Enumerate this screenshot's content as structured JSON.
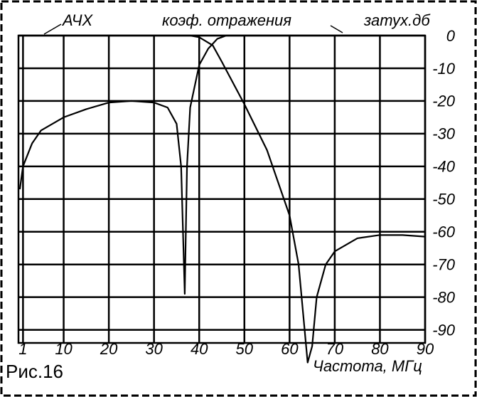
{
  "chart_data": {
    "type": "line",
    "figure_label": "Рис.16",
    "xlabel": "Частота, МГц",
    "ylabel": "затух.дб",
    "xlim": [
      0,
      90
    ],
    "xticks": [
      1,
      10,
      20,
      30,
      40,
      50,
      60,
      70,
      80,
      90
    ],
    "ylim": [
      -94,
      0
    ],
    "yticks": [
      0,
      -10,
      -20,
      -30,
      -40,
      -50,
      -60,
      -70,
      -80,
      -90
    ],
    "grid": true,
    "series": [
      {
        "name": "АЧХ",
        "color": "#000000",
        "x": [
          0.3,
          1,
          3,
          5,
          10,
          15,
          20,
          25,
          30,
          33,
          35,
          36,
          36.8,
          37.3,
          38,
          40,
          42,
          44,
          46,
          50,
          60,
          70,
          80,
          90
        ],
        "values": [
          -47,
          -40,
          -33,
          -29,
          -25,
          -22.5,
          -20.5,
          -20,
          -20.5,
          -22,
          -27,
          -40,
          -79,
          -40,
          -22,
          -9,
          -4,
          -1,
          0,
          0,
          0,
          0,
          0,
          0
        ]
      },
      {
        "name": "коэф. отражения",
        "color": "#000000",
        "x": [
          0,
          10,
          20,
          30,
          38,
          40,
          43,
          45,
          50,
          55,
          60,
          62,
          63,
          64,
          65,
          66,
          68,
          70,
          75,
          80,
          85,
          90
        ],
        "values": [
          0,
          0,
          0,
          0,
          0,
          -0.5,
          -3,
          -8,
          -21,
          -35,
          -55,
          -70,
          -85,
          -100,
          -95,
          -80,
          -70,
          -66,
          -62,
          -61,
          -61,
          -61.5
        ]
      }
    ]
  }
}
